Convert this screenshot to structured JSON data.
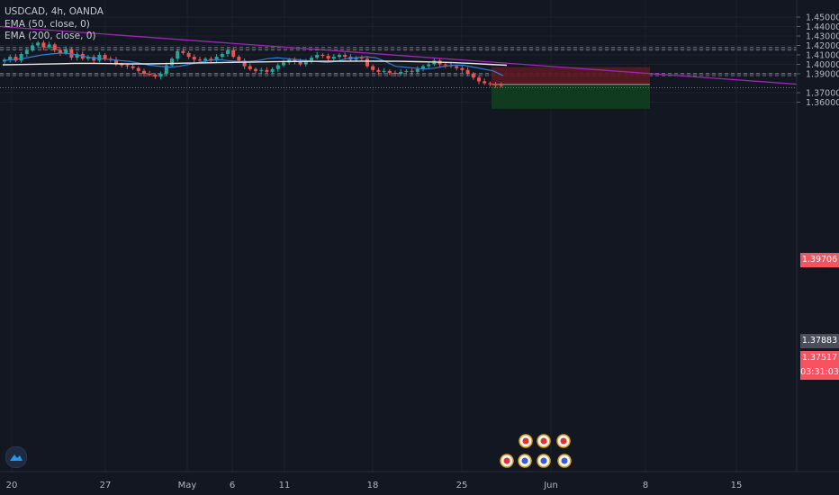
{
  "legend": {
    "symbol": "USDCAD, 4h, OANDA",
    "ema50": "EMA (50, close, 0)",
    "ema200": "EMA (200, close, 0)"
  },
  "colors": {
    "background": "#131722",
    "up": "#26a69a",
    "down": "#ef5350",
    "ema50": "#2f7fd6",
    "ema200": "#e6e6e6",
    "trendline": "#9c27b0",
    "stop_zone": "#5b1a22",
    "target_zone": "#113d1f",
    "current_price": "#ef5350"
  },
  "price_tags": {
    "stop": "1.39706",
    "entry": "1.37883",
    "current": "1.37517",
    "countdown": "03:31:03"
  },
  "chart_data": {
    "type": "candlestick",
    "symbol": "USDCAD",
    "timeframe": "4h",
    "broker": "OANDA",
    "ylim": [
      1.352,
      1.456
    ],
    "y_ticks": [
      "1.45000",
      "1.44000",
      "1.43000",
      "1.42000",
      "1.41000",
      "1.40000",
      "1.39000",
      "1.37000",
      "1.36000"
    ],
    "x_ticks": [
      "20",
      "27",
      "May",
      "6",
      "11",
      "18",
      "25",
      "Jun",
      "8",
      "15"
    ],
    "closes": [
      1.405,
      1.408,
      1.404,
      1.411,
      1.415,
      1.42,
      1.423,
      1.418,
      1.421,
      1.415,
      1.412,
      1.416,
      1.407,
      1.411,
      1.406,
      1.408,
      1.404,
      1.41,
      1.406,
      1.405,
      1.4,
      1.399,
      1.398,
      1.396,
      1.393,
      1.39,
      1.389,
      1.387,
      1.39,
      1.399,
      1.406,
      1.414,
      1.412,
      1.408,
      1.405,
      1.404,
      1.406,
      1.404,
      1.408,
      1.411,
      1.415,
      1.408,
      1.404,
      1.398,
      1.395,
      1.393,
      1.394,
      1.392,
      1.395,
      1.399,
      1.402,
      1.405,
      1.403,
      1.4,
      1.404,
      1.407,
      1.41,
      1.409,
      1.406,
      1.408,
      1.41,
      1.408,
      1.405,
      1.407,
      1.406,
      1.398,
      1.394,
      1.392,
      1.393,
      1.391,
      1.39,
      1.392,
      1.393,
      1.392,
      1.395,
      1.398,
      1.4,
      1.404,
      1.4,
      1.399,
      1.398,
      1.396,
      1.394,
      1.39,
      1.386,
      1.382,
      1.38,
      1.379,
      1.378,
      1.3776
    ],
    "ema50": [
      1.404,
      1.405,
      1.406,
      1.408,
      1.41,
      1.411,
      1.412,
      1.411,
      1.409,
      1.407,
      1.406,
      1.405,
      1.404,
      1.403,
      1.401,
      1.399,
      1.398,
      1.397,
      1.398,
      1.4,
      1.402,
      1.404,
      1.405,
      1.404,
      1.403,
      1.403,
      1.404,
      1.406,
      1.407,
      1.406,
      1.405,
      1.404,
      1.403,
      1.402,
      1.403,
      1.406,
      1.407,
      1.408,
      1.407,
      1.403,
      1.398,
      1.397,
      1.396,
      1.395,
      1.396,
      1.398,
      1.399,
      1.399,
      1.397,
      1.395,
      1.393,
      1.388
    ],
    "ema200": [
      1.3995,
      1.3998,
      1.4002,
      1.4006,
      1.401,
      1.401,
      1.4008,
      1.4005,
      1.4005,
      1.4008,
      1.4012,
      1.4015,
      1.4018,
      1.4022,
      1.4025,
      1.4028,
      1.403,
      1.4031,
      1.4032,
      1.4033,
      1.4034,
      1.4033,
      1.4032,
      1.4029,
      1.4025,
      1.4018,
      1.401,
      1.4,
      1.399
    ],
    "support_zones": [
      [
        1.415,
        1.418
      ],
      [
        1.388,
        1.3905
      ]
    ],
    "trendline": [
      [
        1.44,
        1.379
      ]
    ],
    "position": {
      "side": "short",
      "stop": 1.39706,
      "entry": 1.37883,
      "target": 1.353,
      "current": 1.37517
    }
  }
}
